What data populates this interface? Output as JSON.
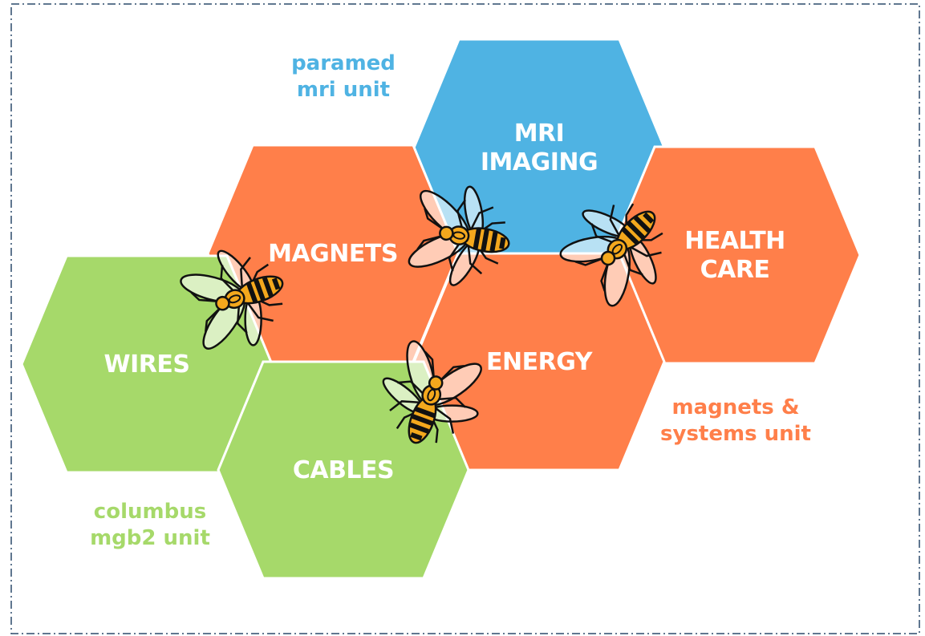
{
  "hexagons": [
    {
      "lines": [
        "MRI",
        "IMAGING"
      ]
    },
    {
      "lines": [
        "MAGNETS"
      ]
    },
    {
      "lines": [
        "HEALTH",
        "CARE"
      ]
    },
    {
      "lines": [
        "WIRES"
      ]
    },
    {
      "lines": [
        "ENERGY"
      ]
    },
    {
      "lines": [
        "CABLES"
      ]
    }
  ],
  "units": [
    {
      "lines": [
        "paramed",
        "mri unit"
      ]
    },
    {
      "lines": [
        "magnets &",
        "systems unit"
      ]
    },
    {
      "lines": [
        "columbus",
        "mgb2 unit"
      ]
    }
  ]
}
